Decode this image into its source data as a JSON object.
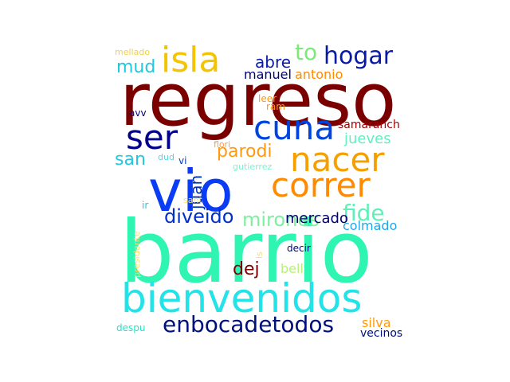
{
  "words": [
    {
      "text": "barrio",
      "color": "#2ff5b3"
    },
    {
      "text": "regreso",
      "color": "#7a0000"
    },
    {
      "text": "vio",
      "color": "#0a3cf5"
    },
    {
      "text": "bienvenidos",
      "color": "#22e4e8"
    },
    {
      "text": "isla",
      "color": "#f5c400"
    },
    {
      "text": "cuna",
      "color": "#0044e0"
    },
    {
      "text": "nacer",
      "color": "#f5a000"
    },
    {
      "text": "correr",
      "color": "#ff8a00"
    },
    {
      "text": "ser",
      "color": "#00008b"
    },
    {
      "text": "hogar",
      "color": "#0a1aa8"
    },
    {
      "text": "to",
      "color": "#7ee87a"
    },
    {
      "text": "enbocadetodos",
      "color": "#00107a"
    },
    {
      "text": "diveido",
      "color": "#0030c8"
    },
    {
      "text": "mirones",
      "color": "#7ef0a0"
    },
    {
      "text": "fide",
      "color": "#5ff0b8"
    },
    {
      "text": "mud",
      "color": "#22c8e0"
    },
    {
      "text": "parodi",
      "color": "#ff9a10"
    },
    {
      "text": "san",
      "color": "#22c8e0"
    },
    {
      "text": "juan",
      "color": "#0030b0"
    },
    {
      "text": "abre",
      "color": "#0a1aa8"
    },
    {
      "text": "antonio",
      "color": "#ff8a00"
    },
    {
      "text": "manuel",
      "color": "#000080"
    },
    {
      "text": "mercado",
      "color": "#000070"
    },
    {
      "text": "dej",
      "color": "#7a0000"
    },
    {
      "text": "jueves",
      "color": "#5ff0c0"
    },
    {
      "text": "colmado",
      "color": "#22a8e8"
    },
    {
      "text": "bell",
      "color": "#b8f07a"
    },
    {
      "text": "silva",
      "color": "#ff9a10"
    },
    {
      "text": "samaranch",
      "color": "#a00000"
    },
    {
      "text": "vecinos",
      "color": "#00107a"
    },
    {
      "text": "despu",
      "color": "#22e4c8"
    },
    {
      "text": "presidente",
      "color": "#f5e070"
    },
    {
      "text": "mellado",
      "color": "#f5d040"
    },
    {
      "text": "avv",
      "color": "#000090"
    },
    {
      "text": "leer",
      "color": "#ff9a10"
    },
    {
      "text": "ram",
      "color": "#ff9a10"
    },
    {
      "text": "flori",
      "color": "#ff9a40"
    },
    {
      "text": "dud",
      "color": "#5fd0e8"
    },
    {
      "text": "vi",
      "color": "#0040c0"
    },
    {
      "text": "gutierrez",
      "color": "#7ef0d0"
    },
    {
      "text": "sant",
      "color": "#f5e070"
    },
    {
      "text": "ir",
      "color": "#22c8e0"
    },
    {
      "text": "decir",
      "color": "#000090"
    },
    {
      "text": "is",
      "color": "#f5e070"
    }
  ]
}
